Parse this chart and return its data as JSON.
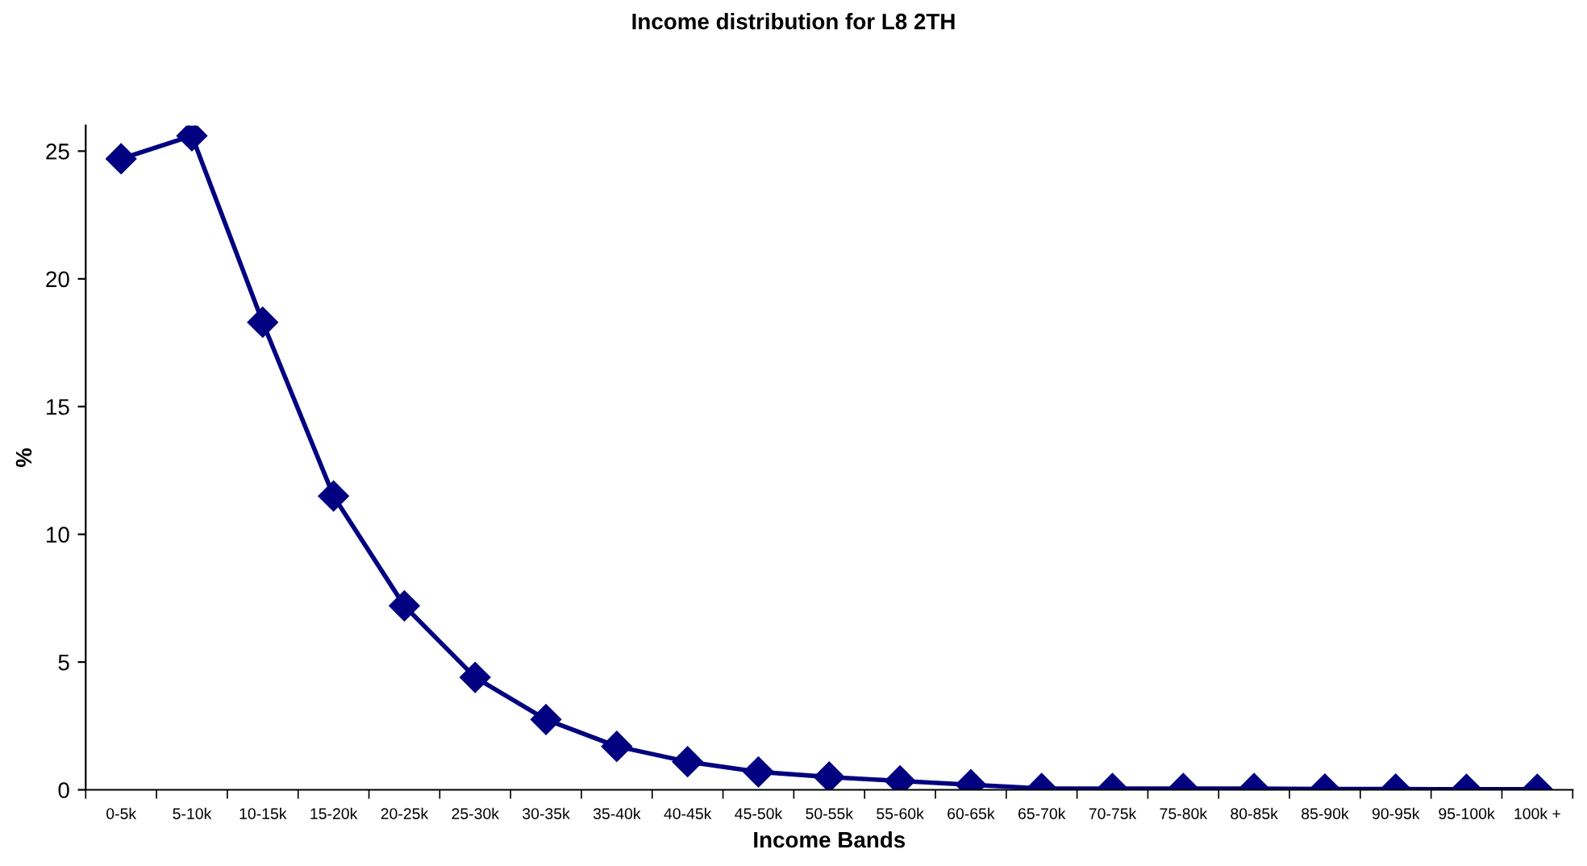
{
  "chart_data": {
    "type": "line",
    "title": "Income distribution for L8 2TH",
    "xlabel": "Income Bands",
    "ylabel": "%",
    "categories": [
      "0-5k",
      "5-10k",
      "10-15k",
      "15-20k",
      "20-25k",
      "25-30k",
      "30-35k",
      "35-40k",
      "40-45k",
      "45-50k",
      "50-55k",
      "55-60k",
      "60-65k",
      "65-70k",
      "70-75k",
      "75-80k",
      "80-85k",
      "85-90k",
      "90-95k",
      "95-100k",
      "100k +"
    ],
    "series": [
      {
        "color": "#000080",
        "values": [
          24.7,
          25.6,
          18.3,
          11.5,
          7.2,
          4.4,
          2.75,
          1.7,
          1.1,
          0.7,
          0.5,
          0.35,
          0.2,
          0.05,
          0.05,
          0.05,
          0.05,
          0.03,
          0.03,
          0.02,
          0.02
        ]
      }
    ],
    "ylim": [
      0,
      26
    ],
    "yticks": [
      0,
      5,
      10,
      15,
      20,
      25
    ],
    "marker": "diamond",
    "line_style": "solid",
    "grid": false,
    "legend": false
  }
}
